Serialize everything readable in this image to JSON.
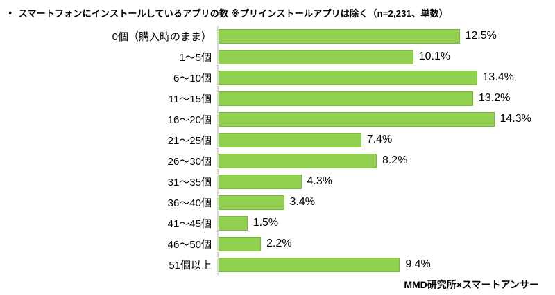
{
  "title": "スマートフォンにインストールしているアプリの数 ※プリインストールアプリは除く（n=2,231、単数）",
  "title_bullet": "●",
  "footer": {
    "source": "MMD研究所×スマートアンサー"
  },
  "chart_data": {
    "type": "bar",
    "orientation": "horizontal",
    "title": "スマートフォンにインストールしているアプリの数 ※プリインストールアプリは除く（n=2,231、単数）",
    "categories": [
      "0個（購入時のまま）",
      "1〜5個",
      "6〜10個",
      "11〜15個",
      "16〜20個",
      "21〜25個",
      "26〜30個",
      "31〜35個",
      "36〜40個",
      "41〜45個",
      "46〜50個",
      "51個以上"
    ],
    "values": [
      12.5,
      10.1,
      13.4,
      13.2,
      14.3,
      7.4,
      8.2,
      4.3,
      3.4,
      1.5,
      2.2,
      9.4
    ],
    "value_labels": [
      "12.5%",
      "10.1%",
      "13.4%",
      "13.2%",
      "14.3%",
      "7.4%",
      "8.2%",
      "4.3%",
      "3.4%",
      "1.5%",
      "2.2%",
      "9.4%"
    ],
    "unit": "%",
    "xlim": [
      0,
      15
    ],
    "grid": false,
    "legend": false,
    "bar_color": "#92d050",
    "bar_border_color": "#77b93c",
    "axis_line_color": "#d9d9d9",
    "source": "MMD研究所×スマートアンサー"
  }
}
